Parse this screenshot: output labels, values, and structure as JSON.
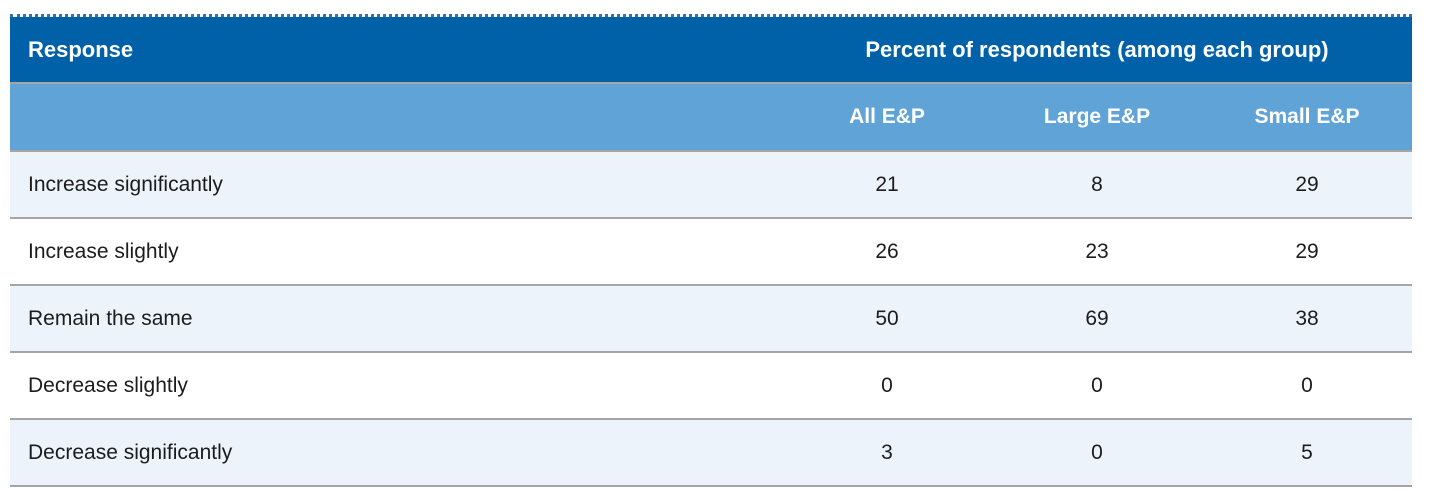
{
  "table": {
    "header": {
      "response_label": "Response",
      "group_label": "Percent of respondents (among each group)",
      "columns": [
        "All E&P",
        "Large E&P",
        "Small E&P"
      ]
    },
    "rows": [
      {
        "label": "Increase significantly",
        "values": [
          "21",
          "8",
          "29"
        ]
      },
      {
        "label": "Increase slightly",
        "values": [
          "26",
          "23",
          "29"
        ]
      },
      {
        "label": "Remain the same",
        "values": [
          "50",
          "69",
          "38"
        ]
      },
      {
        "label": "Decrease slightly",
        "values": [
          "0",
          "0",
          "0"
        ]
      },
      {
        "label": "Decrease significantly",
        "values": [
          "3",
          "0",
          "5"
        ]
      }
    ]
  },
  "colors": {
    "header_bg": "#0061a8",
    "subheader_bg": "#5fa3d7",
    "row_alt_bg": "#edf3fa",
    "row_bg": "#ffffff",
    "divider": "#a5a5a5",
    "header_text": "#ffffff",
    "body_text": "#1c1c1c"
  },
  "chart_data": {
    "type": "table",
    "title": "Percent of respondents (among each group)",
    "row_header": "Response",
    "categories": [
      "Increase significantly",
      "Increase slightly",
      "Remain the same",
      "Decrease slightly",
      "Decrease significantly"
    ],
    "series": [
      {
        "name": "All E&P",
        "values": [
          21,
          26,
          50,
          0,
          3
        ]
      },
      {
        "name": "Large E&P",
        "values": [
          8,
          23,
          69,
          0,
          0
        ]
      },
      {
        "name": "Small E&P",
        "values": [
          29,
          29,
          38,
          0,
          5
        ]
      }
    ]
  }
}
